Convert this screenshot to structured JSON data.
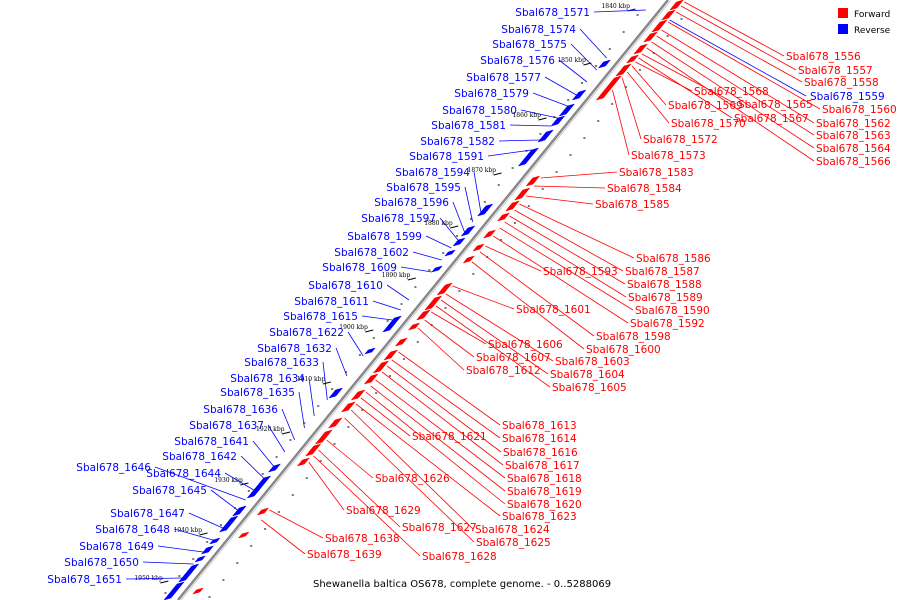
{
  "caption": "Shewanella baltica OS678, complete genome. - 0..5288069",
  "legend": [
    {
      "label": "Forward",
      "color": "#ff0000"
    },
    {
      "label": "Reverse",
      "color": "#0000ff"
    }
  ],
  "colors": {
    "forward": "#ff0000",
    "reverse": "#0000ff",
    "backbone": "#888888"
  },
  "ticks": [
    "1840 kbp",
    "1850 kbp",
    "1860 kbp",
    "1870 kbp",
    "1880 kbp",
    "1890 kbp",
    "1900 kbp",
    "1910 kbp",
    "1920 kbp",
    "1930 kbp",
    "1940 kbp",
    "1950 kbp"
  ],
  "reverse_genes": [
    "Sbal678_1571",
    "Sbal678_1574",
    "Sbal678_1575",
    "Sbal678_1576",
    "Sbal678_1577",
    "Sbal678_1579",
    "Sbal678_1580",
    "Sbal678_1581",
    "Sbal678_1582",
    "Sbal678_1591",
    "Sbal678_1594",
    "Sbal678_1595",
    "Sbal678_1596",
    "Sbal678_1597",
    "Sbal678_1599",
    "Sbal678_1602",
    "Sbal678_1609",
    "Sbal678_1610",
    "Sbal678_1611",
    "Sbal678_1615",
    "Sbal678_1622",
    "Sbal678_1632",
    "Sbal678_1633",
    "Sbal678_1634",
    "Sbal678_1635",
    "Sbal678_1636",
    "Sbal678_1637",
    "Sbal678_1641",
    "Sbal678_1642",
    "Sbal678_1644",
    "Sbal678_1646",
    "Sbal678_1645",
    "Sbal678_1647",
    "Sbal678_1648",
    "Sbal678_1649",
    "Sbal678_1650",
    "Sbal678_1651",
    "Sbal678_1559"
  ],
  "forward_genes": [
    "Sbal678_1556",
    "Sbal678_1557",
    "Sbal678_1558",
    "Sbal678_1560",
    "Sbal678_1562",
    "Sbal678_1563",
    "Sbal678_1564",
    "Sbal678_1566",
    "Sbal678_1565",
    "Sbal678_1567",
    "Sbal678_1568",
    "Sbal678_1569",
    "Sbal678_1570",
    "Sbal678_1572",
    "Sbal678_1573",
    "Sbal678_1583",
    "Sbal678_1584",
    "Sbal678_1585",
    "Sbal678_1586",
    "Sbal678_1587",
    "Sbal678_1588",
    "Sbal678_1589",
    "Sbal678_1590",
    "Sbal678_1592",
    "Sbal678_1593",
    "Sbal678_1598",
    "Sbal678_1600",
    "Sbal678_1601",
    "Sbal678_1603",
    "Sbal678_1604",
    "Sbal678_1605",
    "Sbal678_1606",
    "Sbal678_1607",
    "Sbal678_1612",
    "Sbal678_1613",
    "Sbal678_1614",
    "Sbal678_1616",
    "Sbal678_1617",
    "Sbal678_1618",
    "Sbal678_1619",
    "Sbal678_1620",
    "Sbal678_1621",
    "Sbal678_1623",
    "Sbal678_1624",
    "Sbal678_1625",
    "Sbal678_1626",
    "Sbal678_1627",
    "Sbal678_1628",
    "Sbal678_1629",
    "Sbal678_1638",
    "Sbal678_1639"
  ]
}
